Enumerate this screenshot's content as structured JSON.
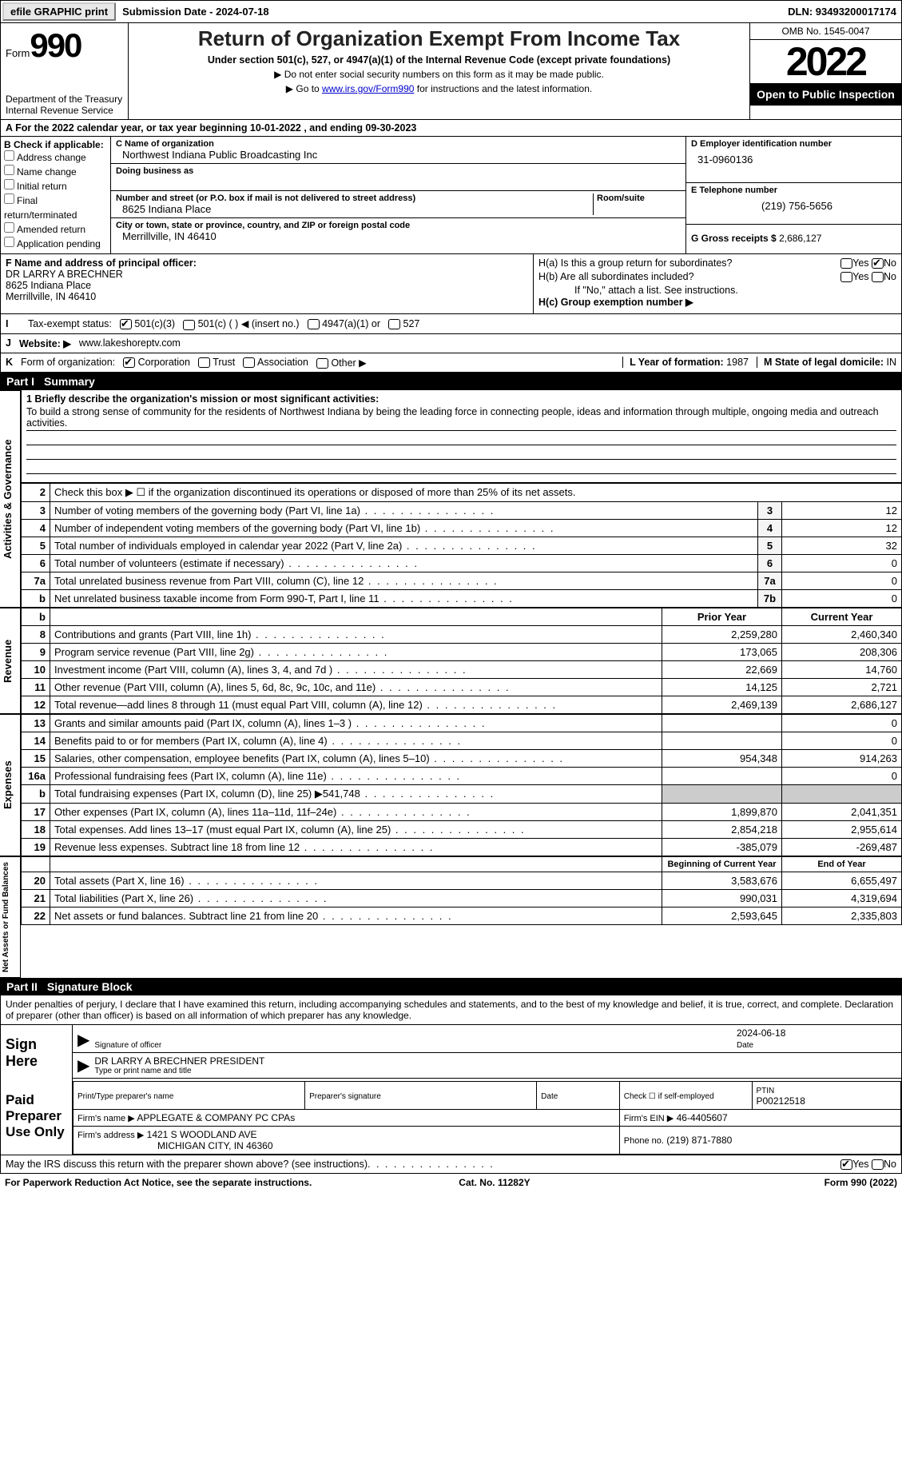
{
  "topbar": {
    "efile_btn": "efile GRAPHIC print",
    "sub_date_label": "Submission Date - 2024-07-18",
    "dln": "DLN: 93493200017174"
  },
  "header": {
    "form_word": "Form",
    "form_num": "990",
    "dept": "Department of the Treasury\nInternal Revenue Service",
    "title": "Return of Organization Exempt From Income Tax",
    "sub1": "Under section 501(c), 527, or 4947(a)(1) of the Internal Revenue Code (except private foundations)",
    "sub2": "▶ Do not enter social security numbers on this form as it may be made public.",
    "sub3_pre": "▶ Go to ",
    "sub3_link": "www.irs.gov/Form990",
    "sub3_post": " for instructions and the latest information.",
    "omb": "OMB No. 1545-0047",
    "year": "2022",
    "open": "Open to Public Inspection"
  },
  "period": "For the 2022 calendar year, or tax year beginning 10-01-2022   , and ending 09-30-2023",
  "section_b": {
    "label": "B Check if applicable:",
    "items": [
      "Address change",
      "Name change",
      "Initial return",
      "Final return/terminated",
      "Amended return",
      "Application pending"
    ]
  },
  "org": {
    "name_label": "C Name of organization",
    "name": "Northwest Indiana Public Broadcasting Inc",
    "dba_label": "Doing business as",
    "addr_label": "Number and street (or P.O. box if mail is not delivered to street address)",
    "room_label": "Room/suite",
    "addr": "8625 Indiana Place",
    "city_label": "City or town, state or province, country, and ZIP or foreign postal code",
    "city": "Merrillville, IN  46410"
  },
  "right_col": {
    "ein_label": "D Employer identification number",
    "ein": "31-0960136",
    "tel_label": "E Telephone number",
    "tel": "(219) 756-5656",
    "gross_label": "G Gross receipts $",
    "gross": "2,686,127"
  },
  "section_f": {
    "f_label": "F  Name and address of principal officer:",
    "officer": "DR LARRY A BRECHNER",
    "addr1": "8625 Indiana Place",
    "addr2": "Merrillville, IN  46410",
    "ha": "H(a)  Is this a group return for subordinates?",
    "hb": "H(b)  Are all subordinates included?",
    "hb_note": "If \"No,\" attach a list. See instructions.",
    "hc": "H(c)  Group exemption number ▶"
  },
  "tax_status": {
    "lead": "I",
    "label": "Tax-exempt status:",
    "opt1": "501(c)(3)",
    "opt2": "501(c) (  ) ◀ (insert no.)",
    "opt3": "4947(a)(1) or",
    "opt4": "527"
  },
  "website": {
    "lead": "J",
    "label": "Website: ▶",
    "url": "www.lakeshoreptv.com"
  },
  "form_org": {
    "lead": "K",
    "label": "Form of organization:",
    "opts": [
      "Corporation",
      "Trust",
      "Association",
      "Other ▶"
    ],
    "year_formed_label": "L Year of formation:",
    "year_formed": "1987",
    "domicile_label": "M State of legal domicile:",
    "domicile": "IN"
  },
  "part1": {
    "header_pn": "Part I",
    "header_title": "Summary",
    "line1_label": "1  Briefly describe the organization's mission or most significant activities:",
    "mission": "To build a strong sense of community for the residents of Northwest Indiana by being the leading force in connecting people, ideas and information through multiple, ongoing media and outreach activities.",
    "line2": "Check this box ▶ ☐ if the organization discontinued its operations or disposed of more than 25% of its net assets."
  },
  "governance": {
    "label": "Activities & Governance",
    "rows": [
      {
        "n": "3",
        "t": "Number of voting members of the governing body (Part VI, line 1a)",
        "box": "3",
        "v": "12"
      },
      {
        "n": "4",
        "t": "Number of independent voting members of the governing body (Part VI, line 1b)",
        "box": "4",
        "v": "12"
      },
      {
        "n": "5",
        "t": "Total number of individuals employed in calendar year 2022 (Part V, line 2a)",
        "box": "5",
        "v": "32"
      },
      {
        "n": "6",
        "t": "Total number of volunteers (estimate if necessary)",
        "box": "6",
        "v": "0"
      },
      {
        "n": "7a",
        "t": "Total unrelated business revenue from Part VIII, column (C), line 12",
        "box": "7a",
        "v": "0"
      },
      {
        "n": "b",
        "t": "Net unrelated business taxable income from Form 990-T, Part I, line 11",
        "box": "7b",
        "v": "0"
      }
    ]
  },
  "py_cy_header": {
    "py": "Prior Year",
    "cy": "Current Year"
  },
  "revenue": {
    "label": "Revenue",
    "rows": [
      {
        "n": "8",
        "t": "Contributions and grants (Part VIII, line 1h)",
        "py": "2,259,280",
        "cy": "2,460,340"
      },
      {
        "n": "9",
        "t": "Program service revenue (Part VIII, line 2g)",
        "py": "173,065",
        "cy": "208,306"
      },
      {
        "n": "10",
        "t": "Investment income (Part VIII, column (A), lines 3, 4, and 7d )",
        "py": "22,669",
        "cy": "14,760"
      },
      {
        "n": "11",
        "t": "Other revenue (Part VIII, column (A), lines 5, 6d, 8c, 9c, 10c, and 11e)",
        "py": "14,125",
        "cy": "2,721"
      },
      {
        "n": "12",
        "t": "Total revenue—add lines 8 through 11 (must equal Part VIII, column (A), line 12)",
        "py": "2,469,139",
        "cy": "2,686,127"
      }
    ]
  },
  "expenses": {
    "label": "Expenses",
    "rows": [
      {
        "n": "13",
        "t": "Grants and similar amounts paid (Part IX, column (A), lines 1–3 )",
        "py": "",
        "cy": "0"
      },
      {
        "n": "14",
        "t": "Benefits paid to or for members (Part IX, column (A), line 4)",
        "py": "",
        "cy": "0"
      },
      {
        "n": "15",
        "t": "Salaries, other compensation, employee benefits (Part IX, column (A), lines 5–10)",
        "py": "954,348",
        "cy": "914,263"
      },
      {
        "n": "16a",
        "t": "Professional fundraising fees (Part IX, column (A), line 11e)",
        "py": "",
        "cy": "0"
      },
      {
        "n": "b",
        "t": "Total fundraising expenses (Part IX, column (D), line 25) ▶541,748",
        "py": "grey",
        "cy": "grey"
      },
      {
        "n": "17",
        "t": "Other expenses (Part IX, column (A), lines 11a–11d, 11f–24e)",
        "py": "1,899,870",
        "cy": "2,041,351"
      },
      {
        "n": "18",
        "t": "Total expenses. Add lines 13–17 (must equal Part IX, column (A), line 25)",
        "py": "2,854,218",
        "cy": "2,955,614"
      },
      {
        "n": "19",
        "t": "Revenue less expenses. Subtract line 18 from line 12",
        "py": "-385,079",
        "cy": "-269,487"
      }
    ]
  },
  "bcy_ecy_header": {
    "b": "Beginning of Current Year",
    "e": "End of Year"
  },
  "netassets": {
    "label": "Net Assets or Fund Balances",
    "rows": [
      {
        "n": "20",
        "t": "Total assets (Part X, line 16)",
        "py": "3,583,676",
        "cy": "6,655,497"
      },
      {
        "n": "21",
        "t": "Total liabilities (Part X, line 26)",
        "py": "990,031",
        "cy": "4,319,694"
      },
      {
        "n": "22",
        "t": "Net assets or fund balances. Subtract line 21 from line 20",
        "py": "2,593,645",
        "cy": "2,335,803"
      }
    ]
  },
  "part2": {
    "header_pn": "Part II",
    "header_title": "Signature Block",
    "intro": "Under penalties of perjury, I declare that I have examined this return, including accompanying schedules and statements, and to the best of my knowledge and belief, it is true, correct, and complete. Declaration of preparer (other than officer) is based on all information of which preparer has any knowledge.",
    "sign_here": "Sign Here",
    "sig_officer": "Signature of officer",
    "sig_date": "2024-06-18",
    "date_label": "Date",
    "name_title": "DR LARRY A BRECHNER  PRESIDENT",
    "name_title_label": "Type or print name and title"
  },
  "preparer": {
    "label": "Paid Preparer Use Only",
    "print_name_label": "Print/Type preparer's name",
    "sig_label": "Preparer's signature",
    "date_label": "Date",
    "check_label": "Check ☐ if self-employed",
    "ptin_label": "PTIN",
    "ptin": "P00212518",
    "firm_name_label": "Firm's name    ▶",
    "firm_name": "APPLEGATE & COMPANY PC CPAs",
    "firm_ein_label": "Firm's EIN ▶",
    "firm_ein": "46-4405607",
    "firm_addr_label": "Firm's address ▶",
    "firm_addr1": "1421 S WOODLAND AVE",
    "firm_addr2": "MICHIGAN CITY, IN  46360",
    "phone_label": "Phone no.",
    "phone": "(219) 871-7880"
  },
  "footer": {
    "discuss": "May the IRS discuss this return with the preparer shown above? (see instructions)",
    "paperwork": "For Paperwork Reduction Act Notice, see the separate instructions.",
    "cat": "Cat. No. 11282Y",
    "form": "Form 990 (2022)"
  }
}
